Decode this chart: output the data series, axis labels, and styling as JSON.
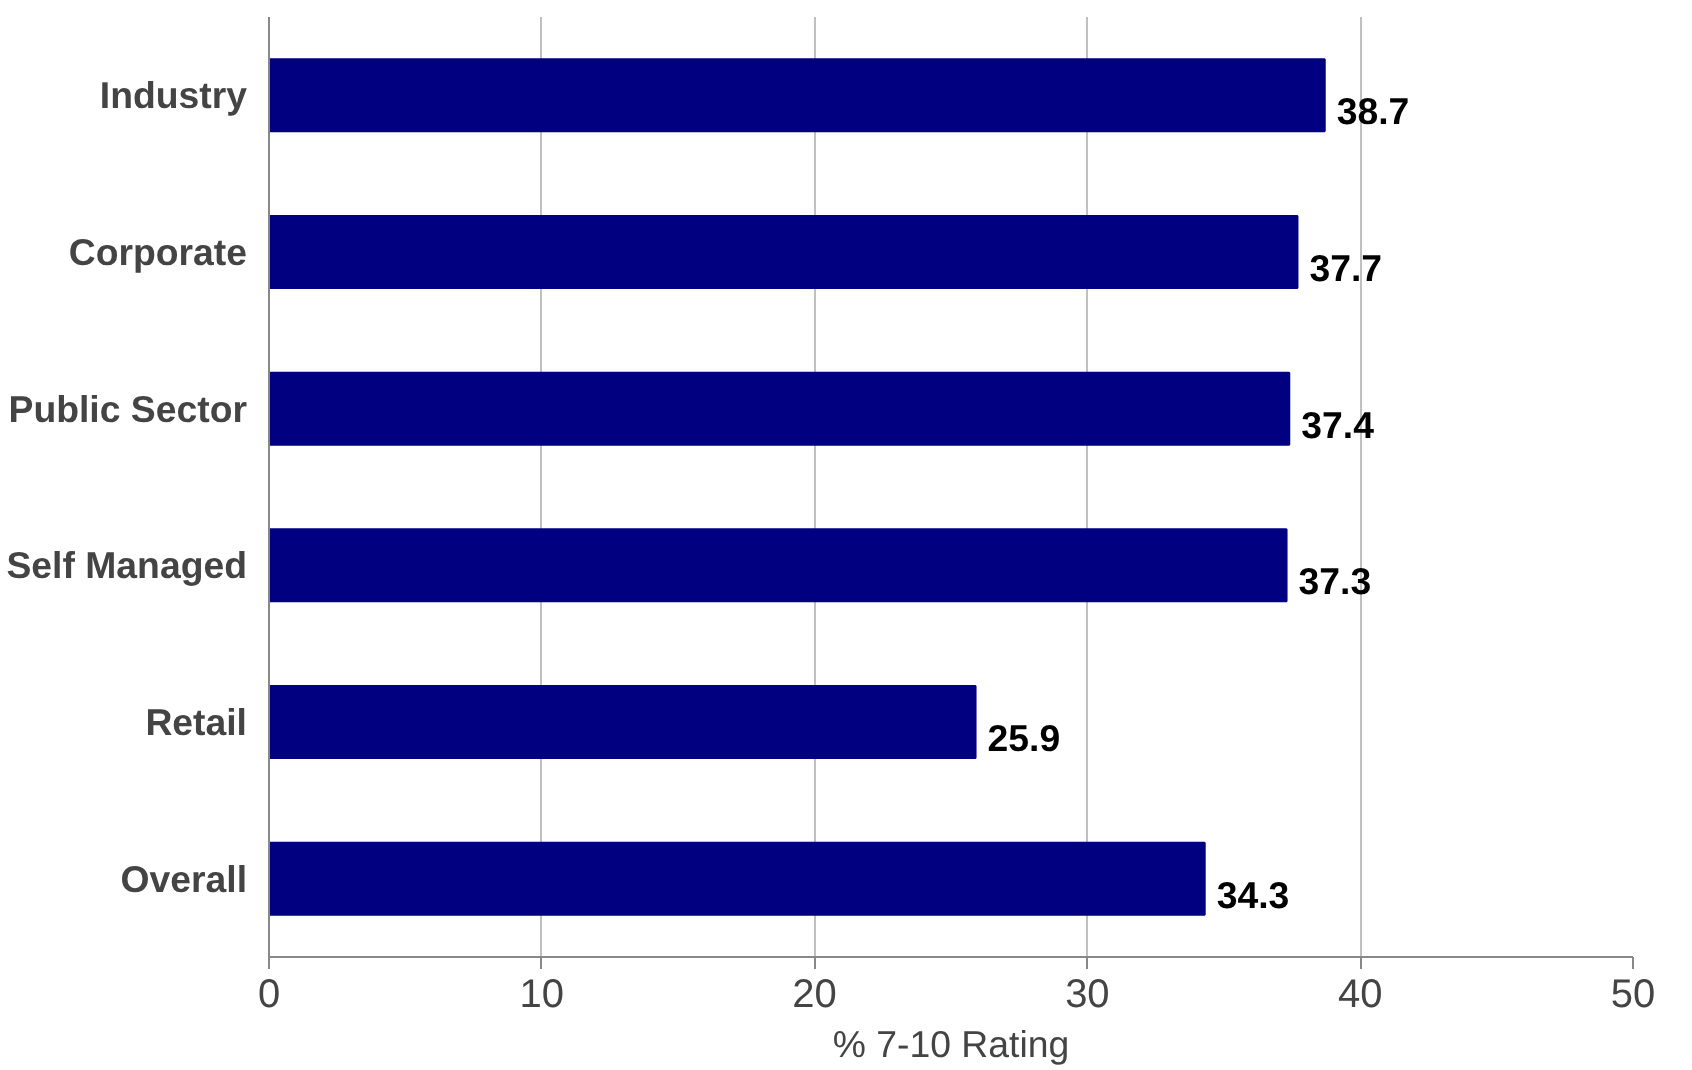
{
  "chart_data": {
    "type": "bar",
    "orientation": "horizontal",
    "categories": [
      "Industry",
      "Corporate",
      "Public Sector",
      "Self Managed",
      "Retail",
      "Overall"
    ],
    "values": [
      38.7,
      37.7,
      37.4,
      37.3,
      25.9,
      34.3
    ],
    "color": "#000080",
    "xlabel": "% 7-10 Rating",
    "xlim": [
      0,
      50
    ],
    "xticks": [
      0,
      10,
      20,
      30,
      40,
      50
    ],
    "grid": "x",
    "data_labels": true
  }
}
